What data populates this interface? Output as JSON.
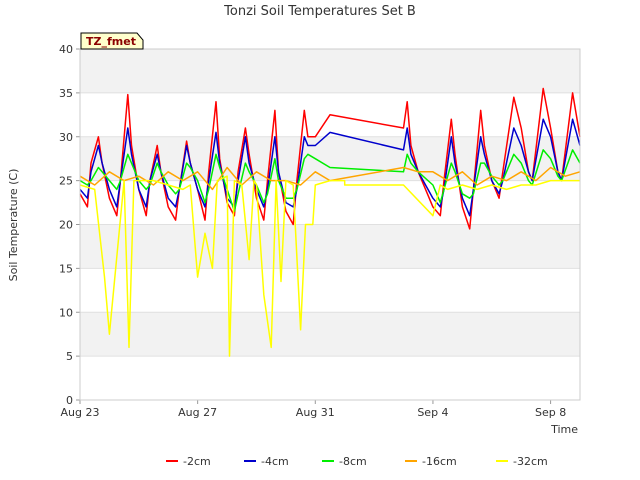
{
  "chart_data": {
    "type": "line",
    "title": "Tonzi Soil Temperatures Set B",
    "xlabel": "Time",
    "ylabel": "Soil Temperature (C)",
    "badge": "TZ_fmet",
    "xlim": [
      "2023-08-23",
      "2023-09-09"
    ],
    "ylim": [
      0,
      40
    ],
    "yticks": [
      0,
      5,
      10,
      15,
      20,
      25,
      30,
      35,
      40
    ],
    "xticks": [
      {
        "date": "2023-08-23",
        "label": "Aug 23"
      },
      {
        "date": "2023-08-27",
        "label": "Aug 27"
      },
      {
        "date": "2023-08-31",
        "label": "Aug 31"
      },
      {
        "date": "2023-09-04",
        "label": "Sep 4"
      },
      {
        "date": "2023-09-08",
        "label": "Sep 8"
      }
    ],
    "grid": "alternating horizontal bands",
    "legend_position": "bottom",
    "series": [
      {
        "name": "-2cm",
        "color": "#ff0000",
        "x": [
          "2023-08-23 00:00",
          "2023-08-23 06:00",
          "2023-08-23 09:00",
          "2023-08-23 15:00",
          "2023-08-23 18:00",
          "2023-08-24 00:00",
          "2023-08-24 06:00",
          "2023-08-24 09:00",
          "2023-08-24 15:00",
          "2023-08-24 18:00",
          "2023-08-25 00:00",
          "2023-08-25 06:00",
          "2023-08-25 09:00",
          "2023-08-25 15:00",
          "2023-08-25 18:00",
          "2023-08-26 00:00",
          "2023-08-26 06:00",
          "2023-08-26 09:00",
          "2023-08-26 15:00",
          "2023-08-26 18:00",
          "2023-08-27 00:00",
          "2023-08-27 06:00",
          "2023-08-27 09:00",
          "2023-08-27 15:00",
          "2023-08-27 18:00",
          "2023-08-28 00:00",
          "2023-08-28 06:00",
          "2023-08-28 09:00",
          "2023-08-28 15:00",
          "2023-08-28 18:00",
          "2023-08-29 00:00",
          "2023-08-29 06:00",
          "2023-08-29 09:00",
          "2023-08-29 15:00",
          "2023-08-29 18:00",
          "2023-08-30 00:00",
          "2023-08-30 06:00",
          "2023-08-30 09:00",
          "2023-08-30 15:00",
          "2023-08-30 18:00",
          "2023-08-31 00:00",
          "2023-08-31 12:00",
          "2023-09-03 00:00",
          "2023-09-03 03:00",
          "2023-09-03 06:00",
          "2023-09-03 12:00",
          "2023-09-04 00:00",
          "2023-09-04 06:00",
          "2023-09-04 09:00",
          "2023-09-04 15:00",
          "2023-09-04 18:00",
          "2023-09-05 00:00",
          "2023-09-05 06:00",
          "2023-09-05 09:00",
          "2023-09-05 15:00",
          "2023-09-05 18:00",
          "2023-09-06 00:00",
          "2023-09-06 06:00",
          "2023-09-06 09:00",
          "2023-09-06 18:00",
          "2023-09-07 00:00",
          "2023-09-07 06:00",
          "2023-09-07 09:00",
          "2023-09-07 18:00",
          "2023-09-08 00:00",
          "2023-09-08 06:00",
          "2023-09-08 09:00",
          "2023-09-08 18:00",
          "2023-09-09 00:00"
        ],
        "y": [
          23.5,
          22.0,
          27.0,
          30.0,
          27.0,
          23.0,
          21.0,
          25.0,
          34.8,
          29.0,
          24.0,
          21.0,
          25.0,
          29.0,
          26.0,
          22.0,
          20.5,
          24.0,
          29.5,
          27.0,
          24.0,
          20.5,
          26.0,
          34.0,
          27.5,
          22.5,
          21.0,
          26.0,
          31.0,
          28.0,
          23.0,
          20.5,
          25.0,
          33.0,
          26.0,
          21.5,
          20.0,
          25.0,
          33.0,
          30.0,
          30.0,
          32.5,
          31.0,
          34.0,
          29.0,
          26.0,
          22.0,
          21.0,
          25.0,
          32.0,
          28.0,
          22.0,
          19.5,
          24.0,
          33.0,
          29.0,
          25.0,
          23.0,
          26.0,
          34.5,
          31.0,
          26.0,
          25.0,
          35.5,
          31.0,
          26.0,
          25.0,
          35.0,
          30.0
        ]
      },
      {
        "name": "-4cm",
        "color": "#0000cc",
        "x": [
          "2023-08-23 00:00",
          "2023-08-23 06:00",
          "2023-08-23 09:00",
          "2023-08-23 15:00",
          "2023-08-23 18:00",
          "2023-08-24 00:00",
          "2023-08-24 06:00",
          "2023-08-24 09:00",
          "2023-08-24 15:00",
          "2023-08-24 18:00",
          "2023-08-25 00:00",
          "2023-08-25 06:00",
          "2023-08-25 09:00",
          "2023-08-25 15:00",
          "2023-08-25 18:00",
          "2023-08-26 00:00",
          "2023-08-26 06:00",
          "2023-08-26 09:00",
          "2023-08-26 15:00",
          "2023-08-26 18:00",
          "2023-08-27 00:00",
          "2023-08-27 06:00",
          "2023-08-27 09:00",
          "2023-08-27 15:00",
          "2023-08-27 18:00",
          "2023-08-28 00:00",
          "2023-08-28 06:00",
          "2023-08-28 09:00",
          "2023-08-28 15:00",
          "2023-08-28 18:00",
          "2023-08-29 00:00",
          "2023-08-29 06:00",
          "2023-08-29 09:00",
          "2023-08-29 15:00",
          "2023-08-29 18:00",
          "2023-08-30 00:00",
          "2023-08-30 06:00",
          "2023-08-30 09:00",
          "2023-08-30 15:00",
          "2023-08-30 18:00",
          "2023-08-31 00:00",
          "2023-08-31 12:00",
          "2023-09-03 00:00",
          "2023-09-03 03:00",
          "2023-09-03 06:00",
          "2023-09-03 12:00",
          "2023-09-04 00:00",
          "2023-09-04 06:00",
          "2023-09-04 09:00",
          "2023-09-04 15:00",
          "2023-09-04 18:00",
          "2023-09-05 00:00",
          "2023-09-05 06:00",
          "2023-09-05 09:00",
          "2023-09-05 15:00",
          "2023-09-05 18:00",
          "2023-09-06 00:00",
          "2023-09-06 06:00",
          "2023-09-06 09:00",
          "2023-09-06 18:00",
          "2023-09-07 00:00",
          "2023-09-07 06:00",
          "2023-09-07 09:00",
          "2023-09-07 18:00",
          "2023-09-08 00:00",
          "2023-09-08 06:00",
          "2023-09-08 09:00",
          "2023-09-08 18:00",
          "2023-09-09 00:00"
        ],
        "y": [
          24.0,
          23.0,
          26.0,
          29.0,
          27.0,
          24.0,
          22.0,
          25.0,
          31.0,
          28.0,
          24.0,
          22.0,
          25.0,
          28.0,
          26.0,
          23.0,
          22.0,
          24.0,
          29.0,
          27.0,
          24.0,
          22.0,
          25.0,
          30.5,
          27.0,
          23.0,
          22.0,
          25.0,
          30.0,
          27.0,
          24.0,
          22.0,
          24.0,
          30.0,
          26.0,
          22.5,
          22.0,
          24.0,
          30.0,
          29.0,
          29.0,
          30.5,
          28.5,
          31.0,
          28.0,
          26.0,
          23.0,
          22.0,
          24.0,
          30.0,
          27.0,
          23.0,
          21.0,
          24.0,
          30.0,
          28.0,
          25.0,
          23.5,
          25.0,
          31.0,
          29.0,
          26.0,
          25.0,
          32.0,
          30.0,
          26.0,
          25.0,
          32.0,
          29.0
        ]
      },
      {
        "name": "-8cm",
        "color": "#00ee00",
        "x": [
          "2023-08-23 00:00",
          "2023-08-23 06:00",
          "2023-08-23 09:00",
          "2023-08-23 15:00",
          "2023-08-23 18:00",
          "2023-08-24 00:00",
          "2023-08-24 06:00",
          "2023-08-24 09:00",
          "2023-08-24 15:00",
          "2023-08-24 18:00",
          "2023-08-25 00:00",
          "2023-08-25 06:00",
          "2023-08-25 09:00",
          "2023-08-25 15:00",
          "2023-08-25 18:00",
          "2023-08-26 00:00",
          "2023-08-26 06:00",
          "2023-08-26 09:00",
          "2023-08-26 15:00",
          "2023-08-26 18:00",
          "2023-08-27 00:00",
          "2023-08-27 06:00",
          "2023-08-27 09:00",
          "2023-08-27 15:00",
          "2023-08-27 18:00",
          "2023-08-28 00:00",
          "2023-08-28 06:00",
          "2023-08-28 09:00",
          "2023-08-28 15:00",
          "2023-08-28 18:00",
          "2023-08-29 00:00",
          "2023-08-29 06:00",
          "2023-08-29 09:00",
          "2023-08-29 15:00",
          "2023-08-29 18:00",
          "2023-08-30 00:00",
          "2023-08-30 06:00",
          "2023-08-30 09:00",
          "2023-08-30 15:00",
          "2023-08-30 18:00",
          "2023-08-31 00:00",
          "2023-08-31 12:00",
          "2023-09-03 00:00",
          "2023-09-03 03:00",
          "2023-09-03 06:00",
          "2023-09-03 12:00",
          "2023-09-04 00:00",
          "2023-09-04 06:00",
          "2023-09-04 09:00",
          "2023-09-04 15:00",
          "2023-09-04 18:00",
          "2023-09-05 00:00",
          "2023-09-05 06:00",
          "2023-09-05 09:00",
          "2023-09-05 15:00",
          "2023-09-05 18:00",
          "2023-09-06 00:00",
          "2023-09-06 06:00",
          "2023-09-06 09:00",
          "2023-09-06 18:00",
          "2023-09-07 00:00",
          "2023-09-07 06:00",
          "2023-09-07 09:00",
          "2023-09-07 18:00",
          "2023-09-08 00:00",
          "2023-09-08 06:00",
          "2023-09-08 09:00",
          "2023-09-08 18:00",
          "2023-09-09 00:00"
        ],
        "y": [
          25.0,
          24.5,
          25.0,
          26.5,
          26.0,
          25.0,
          24.0,
          25.0,
          28.0,
          27.0,
          25.0,
          24.0,
          24.5,
          27.0,
          26.0,
          24.5,
          23.5,
          24.0,
          27.0,
          26.5,
          25.0,
          22.5,
          24.0,
          28.0,
          26.5,
          24.0,
          21.5,
          23.5,
          27.0,
          26.0,
          24.5,
          22.5,
          23.5,
          27.5,
          25.0,
          23.0,
          23.0,
          24.0,
          27.5,
          28.0,
          27.5,
          26.5,
          26.0,
          28.0,
          27.0,
          26.0,
          24.5,
          22.5,
          24.0,
          27.0,
          26.0,
          23.5,
          23.0,
          23.5,
          27.0,
          27.0,
          25.5,
          24.5,
          25.0,
          28.0,
          27.0,
          25.0,
          24.5,
          28.5,
          27.5,
          25.5,
          25.0,
          28.5,
          27.0
        ]
      },
      {
        "name": "-16cm",
        "color": "#ffa500",
        "x": [
          "2023-08-23 00:00",
          "2023-08-23 12:00",
          "2023-08-24 00:00",
          "2023-08-24 12:00",
          "2023-08-25 00:00",
          "2023-08-25 12:00",
          "2023-08-26 00:00",
          "2023-08-26 12:00",
          "2023-08-27 00:00",
          "2023-08-27 12:00",
          "2023-08-28 00:00",
          "2023-08-28 12:00",
          "2023-08-29 00:00",
          "2023-08-29 12:00",
          "2023-08-30 00:00",
          "2023-08-30 12:00",
          "2023-08-31 00:00",
          "2023-08-31 12:00",
          "2023-09-03 00:00",
          "2023-09-03 12:00",
          "2023-09-04 00:00",
          "2023-09-04 12:00",
          "2023-09-05 00:00",
          "2023-09-05 12:00",
          "2023-09-06 00:00",
          "2023-09-06 12:00",
          "2023-09-07 00:00",
          "2023-09-07 12:00",
          "2023-09-08 00:00",
          "2023-09-08 12:00",
          "2023-09-09 00:00"
        ],
        "y": [
          25.5,
          24.5,
          26.0,
          25.0,
          25.5,
          24.5,
          26.0,
          25.0,
          26.0,
          24.0,
          26.5,
          24.5,
          26.0,
          25.0,
          25.0,
          24.5,
          26.0,
          25.0,
          26.5,
          26.0,
          26.0,
          25.0,
          26.0,
          24.5,
          25.5,
          25.0,
          26.0,
          25.0,
          26.5,
          25.5,
          26.0
        ]
      },
      {
        "name": "-32cm",
        "color": "#ffff00",
        "x": [
          "2023-08-23 00:00",
          "2023-08-23 12:00",
          "2023-08-23 20:00",
          "2023-08-24 00:00",
          "2023-08-24 12:00",
          "2023-08-24 16:00",
          "2023-08-24 20:00",
          "2023-08-25 12:00",
          "2023-08-26 00:00",
          "2023-08-26 12:00",
          "2023-08-26 18:00",
          "2023-08-27 00:00",
          "2023-08-27 06:00",
          "2023-08-27 12:00",
          "2023-08-27 16:00",
          "2023-08-28 00:00",
          "2023-08-28 02:00",
          "2023-08-28 06:00",
          "2023-08-28 12:00",
          "2023-08-28 18:00",
          "2023-08-28 22:00",
          "2023-08-29 00:00",
          "2023-08-29 06:00",
          "2023-08-29 12:00",
          "2023-08-29 16:00",
          "2023-08-29 20:00",
          "2023-08-30 00:00",
          "2023-08-30 06:00",
          "2023-08-30 12:00",
          "2023-08-30 16:00",
          "2023-08-30 22:00",
          "2023-08-31 00:00",
          "2023-08-31 12:00",
          "2023-09-01 00:00",
          "2023-09-01 00:01",
          "2023-09-03 00:00",
          "2023-09-04 00:00",
          "2023-09-04 06:00",
          "2023-09-04 12:00",
          "2023-09-05 00:00",
          "2023-09-05 12:00",
          "2023-09-06 00:00",
          "2023-09-06 12:00",
          "2023-09-07 00:00",
          "2023-09-07 12:00",
          "2023-09-08 00:00",
          "2023-09-09 00:00"
        ],
        "y": [
          24.5,
          24.0,
          14.0,
          7.5,
          25.0,
          6.0,
          25.0,
          25.0,
          24.5,
          24.0,
          24.5,
          14.0,
          19.0,
          15.0,
          25.0,
          25.5,
          5.0,
          25.0,
          24.5,
          16.0,
          25.0,
          24.5,
          12.0,
          6.0,
          25.0,
          13.5,
          25.0,
          24.5,
          8.0,
          20.0,
          20.0,
          24.5,
          25.0,
          25.0,
          24.5,
          24.5,
          21.0,
          24.5,
          24.0,
          24.5,
          24.0,
          24.5,
          24.0,
          24.5,
          24.5,
          25.0,
          25.0
        ]
      }
    ]
  }
}
